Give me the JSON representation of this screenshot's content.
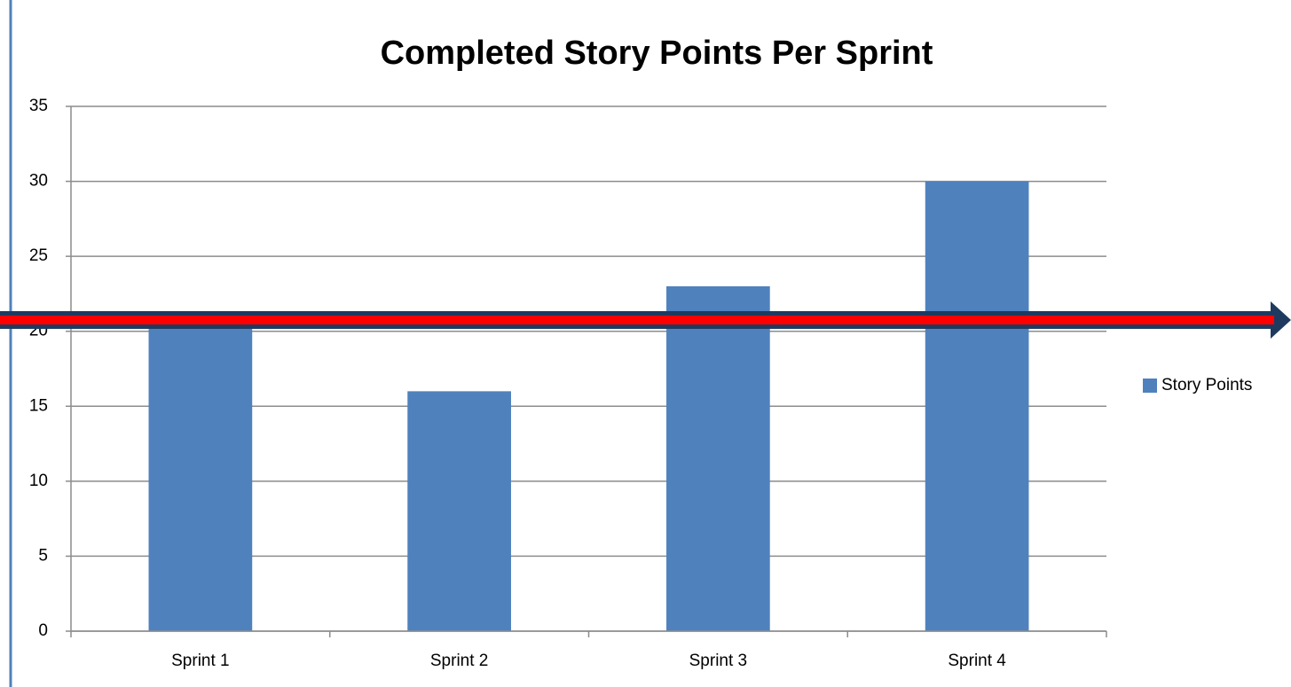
{
  "chart_data": {
    "type": "bar",
    "title": "Completed Story Points Per Sprint",
    "categories": [
      "Sprint 1",
      "Sprint 2",
      "Sprint 3",
      "Sprint 4"
    ],
    "series": [
      {
        "name": "Story Points",
        "color": "#4f81bd",
        "values": [
          21,
          16,
          23,
          30
        ]
      }
    ],
    "ylim": [
      0,
      35
    ],
    "yticks": [
      0,
      5,
      10,
      15,
      20,
      25,
      30,
      35
    ],
    "grid": true,
    "legend": "right"
  }
}
